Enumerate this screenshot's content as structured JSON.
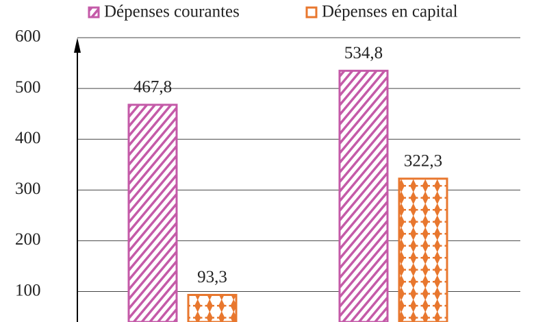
{
  "chart_data": {
    "type": "bar",
    "categories": [
      null,
      null
    ],
    "series": [
      {
        "name": "Dépenses courantes",
        "color": "#c45aa8",
        "values": [
          467.8,
          534.8
        ],
        "value_labels": [
          "467,8",
          "534,8"
        ]
      },
      {
        "name": "Dépenses en capital",
        "color": "#e8772e",
        "values": [
          93.3,
          322.3
        ],
        "value_labels": [
          "93,3",
          "322,3"
        ]
      }
    ],
    "ylim": [
      40,
      600
    ],
    "yticks": [
      100,
      200,
      300,
      400,
      500,
      600
    ],
    "grid": true
  }
}
